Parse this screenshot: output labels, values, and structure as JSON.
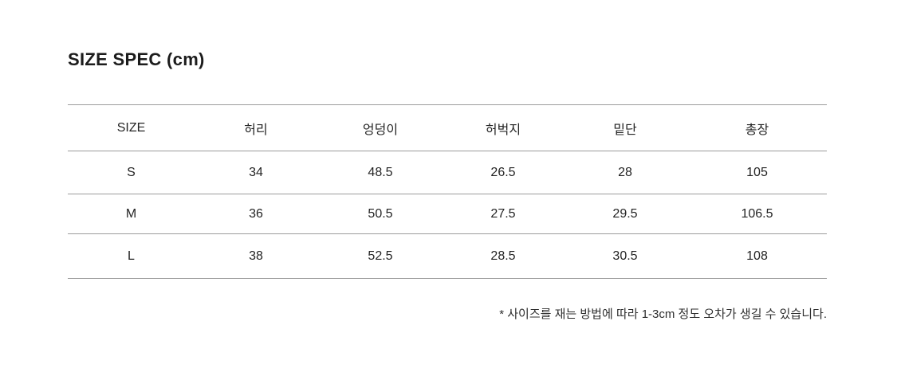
{
  "page": {
    "title": "SIZE SPEC (cm)"
  },
  "table": {
    "columns": [
      "SIZE",
      "허리",
      "엉덩이",
      "허벅지",
      "밑단",
      "총장"
    ],
    "rows": [
      [
        "S",
        "34",
        "48.5",
        "26.5",
        "28",
        "105"
      ],
      [
        "M",
        "36",
        "50.5",
        "27.5",
        "29.5",
        "106.5"
      ],
      [
        "L",
        "38",
        "52.5",
        "28.5",
        "30.5",
        "108"
      ]
    ]
  },
  "footnote": "* 사이즈를 재는 방법에 따라 1-3cm 정도 오차가 생길 수 있습니다."
}
